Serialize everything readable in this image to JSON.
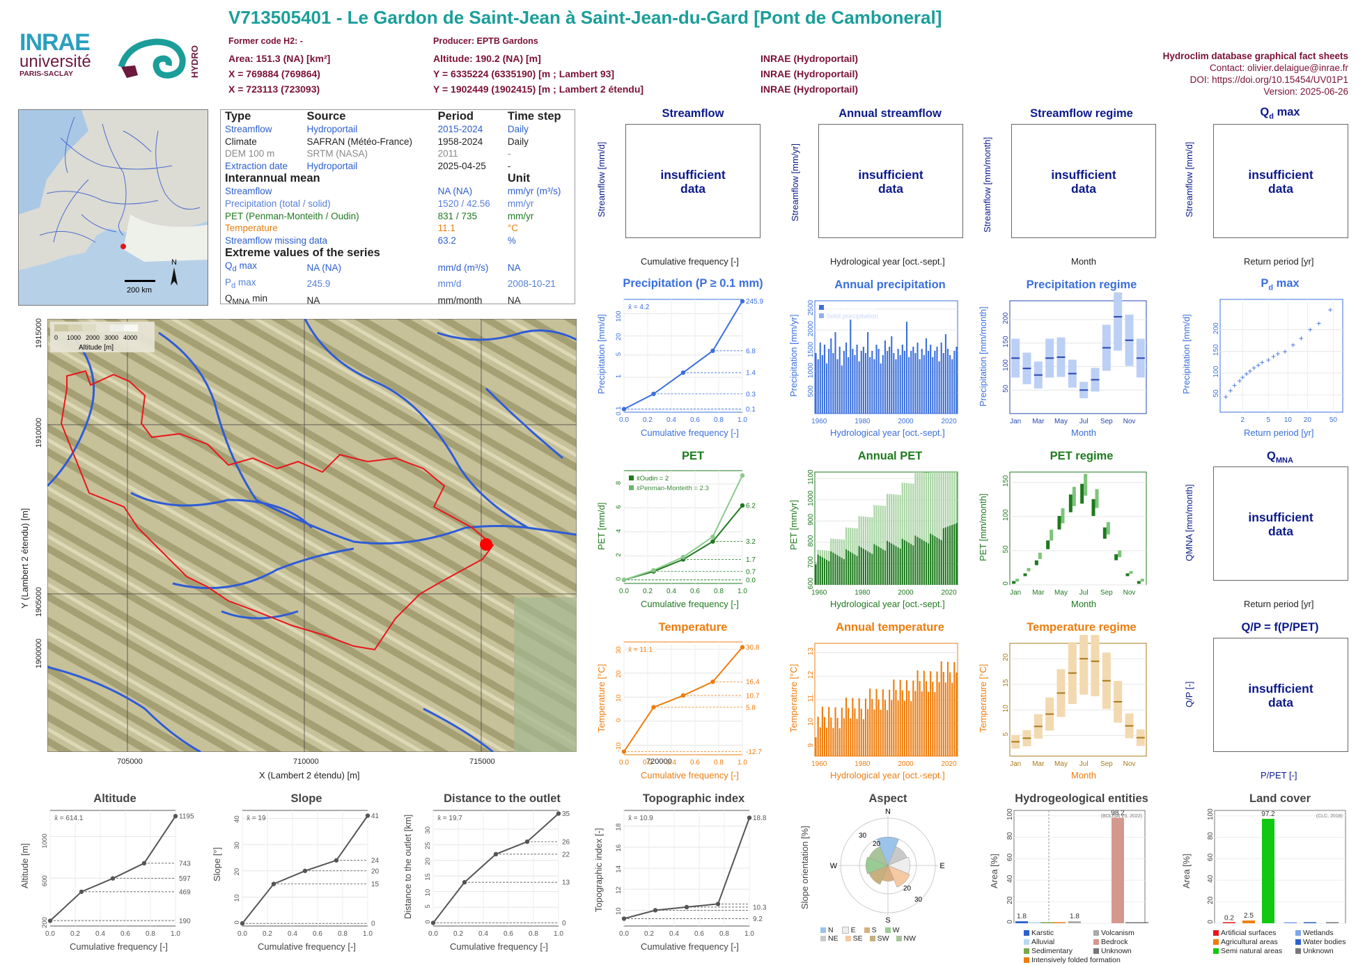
{
  "header": {
    "title": "V713505401 - Le Gardon de Saint-Jean à Saint-Jean-du-Gard [Pont de Camboneral]",
    "former_code": "Former code H2: -",
    "producer": "Producer: EPTB Gardons",
    "area": "Area: 151.3 (NA) [km²]",
    "x93": "X = 769884 (769864)",
    "x2": "X = 723113 (723093)",
    "altitude": "Altitude: 190.2 (NA) [m]",
    "y93": "Y = 6335224 (6335190) [m ; Lambert 93]",
    "y2": "Y = 1902449 (1902415) [m ; Lambert 2 étendu]",
    "src1": "INRAE (Hydroportail)",
    "src2": "INRAE (Hydroportail)",
    "src3": "INRAE (Hydroportail)",
    "db": "Hydroclim database graphical fact sheets",
    "contact": "Contact: olivier.delaigue@inrae.fr",
    "doi": "DOI: https://doi.org/10.15454/UV01P1",
    "version": "Version: 2025-06-26",
    "logo_inrae": "INRAE",
    "logo_univ": "université",
    "logo_ps": "PARIS-SACLAY",
    "logo_hydro": "HYDRO"
  },
  "locator": {
    "north": "N",
    "scale": "200 km"
  },
  "info": {
    "h_type": "Type",
    "h_source": "Source",
    "h_period": "Period",
    "h_step": "Time step",
    "rows": [
      {
        "type": "Streamflow",
        "source": "Hydroportail",
        "period": "2015-2024",
        "step": "Daily"
      },
      {
        "type": "Climate",
        "source": "SAFRAN (Météo-France)",
        "period": "1958-2024",
        "step": "Daily"
      },
      {
        "type": "DEM 100 m",
        "source": "SRTM (NASA)",
        "period": "2011",
        "step": "-"
      },
      {
        "type": "Extraction date",
        "source": "Hydroportail",
        "period": "2025-04-25",
        "step": "-"
      }
    ],
    "interannual": "Interannual mean",
    "unit": "Unit",
    "means": [
      {
        "name": "Streamflow",
        "value": "NA (NA)",
        "unit": "mm/yr (m³/s)"
      },
      {
        "name": "Precipitation (total / solid)",
        "value": "1520 / 42.56",
        "unit": "mm/yr"
      },
      {
        "name": "PET (Penman-Monteith / Oudin)",
        "value": "831 / 735",
        "unit": "mm/yr"
      },
      {
        "name": "Temperature",
        "value": "11.1",
        "unit": "°C"
      },
      {
        "name": "Streamflow missing data",
        "value": "63.2",
        "unit": "%"
      }
    ],
    "extreme": "Extreme values of the series",
    "ext": [
      {
        "name": "Qd max",
        "value": "NA (NA)",
        "unit": "mm/d (m³/s)",
        "date": "NA"
      },
      {
        "name": "Pd max",
        "value": "245.9",
        "unit": "mm/d",
        "date": "2008-10-21"
      },
      {
        "name": "QMNA min",
        "value": "NA",
        "unit": "mm/month",
        "date": "NA"
      }
    ]
  },
  "map": {
    "legend_ticks": [
      "0",
      "1000",
      "2000",
      "3000",
      "4000"
    ],
    "legend_title": "Altitude [m]",
    "x_ticks": [
      "705000",
      "710000",
      "715000",
      "720000"
    ],
    "y_ticks": [
      "1915000",
      "1910000",
      "1905000",
      "1900000"
    ],
    "xlabel": "X (Lambert 2 étendu) [m]",
    "ylabel": "Y (Lambert 2 étendu) [m]"
  },
  "panels": {
    "streamflow": {
      "title": "Streamflow",
      "ylabel": "Streamflow [mm/d]",
      "xlabel": "Cumulative frequency [-]",
      "msg1": "insufficient",
      "msg2": "data"
    },
    "annual_streamflow": {
      "title": "Annual streamflow",
      "ylabel": "Streamflow [mm/yr]",
      "xlabel": "Hydrological year [oct.-sept.]",
      "msg1": "insufficient",
      "msg2": "data"
    },
    "streamflow_regime": {
      "title": "Streamflow regime",
      "ylabel": "Streamflow [mm/month]",
      "xlabel": "Month",
      "msg1": "insufficient",
      "msg2": "data"
    },
    "qd_max": {
      "title": "Q",
      "title_sub": "d",
      "title_rest": " max",
      "ylabel": "Streamflow [mm/d]",
      "xlabel": "Return period [yr]",
      "msg1": "insufficient",
      "msg2": "data"
    },
    "precip": {
      "title": "Precipitation (P ≥ 0.1 mm)",
      "ylabel": "Precipitation [mm/d]",
      "xlabel": "Cumulative frequency [-]",
      "mean": "x̄ = 4.2"
    },
    "annual_precip": {
      "title": "Annual precipitation",
      "ylabel": "Precipitation [mm/yr]",
      "xlabel": "Hydrological year [oct.-sept.]",
      "leg1": "Total precipitation",
      "leg2": "Solid precipitation"
    },
    "precip_regime": {
      "title": "Precipitation regime",
      "ylabel": "Precipitation [mm/month]",
      "xlabel": "Month"
    },
    "pd_max": {
      "title": "P",
      "title_sub": "d",
      "title_rest": " max",
      "ylabel": "Precipitation [mm/d]",
      "xlabel": "Return period [yr]"
    },
    "pet": {
      "title": "PET",
      "ylabel": "PET [mm/d]",
      "xlabel": "Cumulative frequency [-]",
      "leg1": "x̄Oudin = 2",
      "leg2": "x̄Penman-Monteith = 2.3"
    },
    "annual_pet": {
      "title": "Annual PET",
      "ylabel": "PET [mm/yr]",
      "xlabel": "Hydrological year [oct.-sept.]"
    },
    "pet_regime": {
      "title": "PET regime",
      "ylabel": "PET [mm/month]",
      "xlabel": "Month"
    },
    "qmna": {
      "title": "Q",
      "title_sub": "MNA",
      "ylabel": "QMNA [mm/month]",
      "xlabel": "Return period [yr]",
      "msg1": "insufficient",
      "msg2": "data"
    },
    "temp": {
      "title": "Temperature",
      "ylabel": "Temperature [°C]",
      "xlabel": "Cumulative frequency [-]",
      "mean": "x̄ = 11.1"
    },
    "annual_temp": {
      "title": "Annual temperature",
      "ylabel": "Temperature [°C]",
      "xlabel": "Hydrological year [oct.-sept.]"
    },
    "temp_regime": {
      "title": "Temperature regime",
      "ylabel": "Temperature [°C]",
      "xlabel": "Month"
    },
    "qp": {
      "title": "Q/P = f(P/PET)",
      "ylabel": "Q/P [-]",
      "xlabel": "P/PET [-]",
      "msg1": "insufficient",
      "msg2": "data"
    },
    "altitude": {
      "title": "Altitude",
      "ylabel": "Altitude [m]",
      "xlabel": "Cumulative frequency [-]",
      "mean": "x̄ = 614.1"
    },
    "slope": {
      "title": "Slope",
      "ylabel": "Slope [°]",
      "xlabel": "Cumulative frequency [-]",
      "mean": "x̄ = 19"
    },
    "distance": {
      "title": "Distance to the outlet",
      "ylabel": "Distance to the outlet [km]",
      "xlabel": "Cumulative frequency [-]",
      "mean": "x̄ = 19.7"
    },
    "topo": {
      "title": "Topographic index",
      "ylabel": "Topographic index [-]",
      "xlabel": "Cumulative frequency [-]",
      "mean": "x̄ = 10.9"
    },
    "aspect": {
      "title": "Aspect",
      "ylabel": "Slope orientation [%]"
    },
    "hydrogeo": {
      "title": "Hydrogeological entities",
      "ylabel": "Area [%]",
      "source": "(BDLISA V3, 2022)"
    },
    "landcover": {
      "title": "Land cover",
      "ylabel": "Area [%]",
      "source": "(CLC, 2018)"
    }
  },
  "chart_data": [
    {
      "type": "line",
      "title": "Precipitation (P ≥ 0.1 mm)",
      "xlabel": "Cumulative frequency [-]",
      "ylabel": "Precipitation [mm/d]",
      "x": [
        0,
        0.25,
        0.5,
        0.75,
        1
      ],
      "y": [
        0.1,
        0.3,
        1.4,
        6.8,
        245.9
      ],
      "right_ticks": [
        "245.9",
        "6.8",
        "1.4",
        "0.3",
        "0.1"
      ],
      "y_ticks": [
        "0.1",
        "1",
        "5",
        "20",
        "100"
      ],
      "x_ticks": [
        "0.0",
        "0.2",
        "0.4",
        "0.6",
        "0.8",
        "1.0"
      ],
      "mean": 4.2
    },
    {
      "type": "bar",
      "title": "Annual precipitation",
      "x_ticks": [
        "1960",
        "1980",
        "2000",
        "2020"
      ],
      "y_ticks": [
        "500",
        "1000",
        "1500",
        "2000",
        "2500"
      ],
      "ylim": [
        0,
        2700
      ],
      "series": [
        {
          "name": "Total precipitation",
          "values": [
            1450,
            1300,
            1700,
            1400,
            1650,
            1200,
            1550,
            1800,
            1450,
            1950,
            1300,
            1600,
            1150,
            1500,
            1700,
            1350,
            2250,
            1550,
            1400,
            1650,
            1250,
            1500,
            1600,
            1450,
            1950,
            1350,
            1500,
            1300,
            1650,
            1550,
            1200,
            1400,
            1750,
            1500,
            1600,
            1850,
            1450,
            1300,
            1550,
            1400,
            1650,
            1500,
            2200,
            1350,
            1500,
            1600,
            1450,
            1700,
            1300,
            1550,
            1400,
            1800,
            1500,
            1650,
            1350,
            1500,
            1600,
            1250,
            1700,
            1450,
            1900,
            1550,
            1400,
            1300,
            1500,
            1600
          ]
        },
        {
          "name": "Solid precipitation",
          "values": []
        }
      ]
    },
    {
      "type": "bar",
      "title": "Precipitation regime",
      "categories": [
        "Jan",
        "Feb",
        "Mar",
        "Apr",
        "May",
        "Jun",
        "Jul",
        "Aug",
        "Sep",
        "Oct",
        "Nov",
        "Dec"
      ],
      "y_ticks": [
        "50",
        "100",
        "150",
        "200"
      ],
      "median": [
        118,
        96,
        82,
        118,
        120,
        85,
        50,
        72,
        140,
        206,
        156,
        118
      ]
    },
    {
      "type": "scatter",
      "title": "Pd max",
      "x_ticks": [
        "2",
        "5",
        "10",
        "20",
        "50"
      ],
      "y_ticks": [
        "50",
        "100",
        "150",
        "200"
      ],
      "x": [
        1.1,
        1.3,
        1.5,
        1.8,
        2.0,
        2.3,
        2.6,
        3.0,
        3.5,
        4.0,
        5.0,
        6.0,
        7.0,
        9.0,
        12,
        16,
        22,
        30,
        45
      ],
      "y": [
        45,
        60,
        72,
        82,
        90,
        98,
        105,
        112,
        118,
        125,
        130,
        138,
        145,
        150,
        165,
        180,
        200,
        215,
        245.9
      ]
    },
    {
      "type": "line",
      "title": "PET",
      "x": [
        0,
        0.25,
        0.5,
        0.75,
        1
      ],
      "series": [
        {
          "name": "Oudin",
          "y": [
            0,
            0.7,
            1.7,
            3.2,
            6.2
          ]
        },
        {
          "name": "Penman-Monteith",
          "y": [
            0,
            0.8,
            1.9,
            3.6,
            8.7
          ]
        }
      ],
      "right_ticks": [
        "6.2",
        "3.2",
        "1.7",
        "0.7",
        "0.0"
      ],
      "y_ticks": [
        "0",
        "2",
        "4",
        "6",
        "8"
      ],
      "x_ticks": [
        "0.0",
        "0.2",
        "0.4",
        "0.6",
        "0.8",
        "1.0"
      ]
    },
    {
      "type": "bar",
      "title": "Annual PET",
      "x_ticks": [
        "1960",
        "1980",
        "2000",
        "2020"
      ],
      "y_ticks": [
        "600",
        "700",
        "800",
        "900",
        "1000",
        "1100"
      ],
      "ylim": [
        600,
        1130
      ]
    },
    {
      "type": "bar",
      "title": "PET regime",
      "categories": [
        "Jan",
        "Feb",
        "Mar",
        "Apr",
        "May",
        "Jun",
        "Jul",
        "Aug",
        "Sep",
        "Oct",
        "Nov",
        "Dec"
      ],
      "y_ticks": [
        "0",
        "50",
        "100",
        "150"
      ],
      "oudin": [
        5,
        15,
        32,
        58,
        90,
        118,
        132,
        112,
        75,
        40,
        15,
        5
      ],
      "pm": [
        8,
        22,
        42,
        72,
        100,
        128,
        145,
        125,
        82,
        45,
        18,
        8
      ]
    },
    {
      "type": "line",
      "title": "Temperature",
      "x": [
        0,
        0.25,
        0.5,
        0.75,
        1
      ],
      "y": [
        -12.7,
        5.8,
        10.7,
        16.4,
        30.8
      ],
      "right_ticks": [
        "30.8",
        "16.4",
        "10.7",
        "5.8",
        "-12.7"
      ],
      "y_ticks": [
        "-10",
        "0",
        "10",
        "20",
        "30"
      ],
      "x_ticks": [
        "0.0",
        "0.2",
        "0.4",
        "0.6",
        "0.8",
        "1.0"
      ],
      "mean": 11.1
    },
    {
      "type": "bar",
      "title": "Annual temperature",
      "x_ticks": [
        "1960",
        "1980",
        "2000",
        "2020"
      ],
      "y_ticks": [
        "9",
        "10",
        "11",
        "12",
        "13"
      ],
      "ylim": [
        8.6,
        13.4
      ]
    },
    {
      "type": "bar",
      "title": "Temperature regime",
      "categories": [
        "Jan",
        "Feb",
        "Mar",
        "Apr",
        "May",
        "Jun",
        "Jul",
        "Aug",
        "Sep",
        "Oct",
        "Nov",
        "Dec"
      ],
      "y_ticks": [
        "5",
        "10",
        "15",
        "20"
      ],
      "median": [
        3.8,
        4.5,
        6.8,
        9.2,
        13.3,
        17.2,
        20.0,
        19.5,
        15.7,
        11.6,
        6.9,
        4.6
      ]
    },
    {
      "type": "line",
      "title": "Altitude",
      "x": [
        0,
        0.25,
        0.5,
        0.75,
        1
      ],
      "y": [
        190,
        469,
        597,
        743,
        1195
      ],
      "right_ticks": [
        "1195",
        "743",
        "597",
        "469",
        "190"
      ],
      "y_ticks": [
        "200",
        "600",
        "1000"
      ],
      "x_ticks": [
        "0.0",
        "0.2",
        "0.4",
        "0.6",
        "0.8",
        "1.0"
      ]
    },
    {
      "type": "line",
      "title": "Slope",
      "x": [
        0,
        0.25,
        0.5,
        0.75,
        1
      ],
      "y": [
        0,
        15,
        20,
        24,
        41
      ],
      "right_ticks": [
        "41",
        "24",
        "20",
        "15",
        "0"
      ],
      "y_ticks": [
        "0",
        "10",
        "20",
        "30",
        "40"
      ],
      "x_ticks": [
        "0.0",
        "0.2",
        "0.4",
        "0.6",
        "0.8",
        "1.0"
      ]
    },
    {
      "type": "line",
      "title": "Distance to the outlet",
      "x": [
        0,
        0.25,
        0.5,
        0.75,
        1
      ],
      "y": [
        0,
        13,
        22,
        26,
        35
      ],
      "right_ticks": [
        "35",
        "26",
        "22",
        "13",
        "0"
      ],
      "y_ticks": [
        "0",
        "5",
        "10",
        "15",
        "20",
        "25",
        "30"
      ],
      "x_ticks": [
        "0.0",
        "0.2",
        "0.4",
        "0.6",
        "0.8",
        "1.0"
      ]
    },
    {
      "type": "line",
      "title": "Topographic index",
      "x": [
        0,
        0.25,
        0.5,
        0.75,
        1
      ],
      "y": [
        9.2,
        10.0,
        10.3,
        10.6,
        18.8
      ],
      "right_ticks": [
        "18.8",
        "10.3",
        "9.2"
      ],
      "y_ticks": [
        "10",
        "12",
        "14",
        "16",
        "18"
      ],
      "x_ticks": [
        "0.0",
        "0.2",
        "0.4",
        "0.6",
        "0.8",
        "1.0"
      ]
    },
    {
      "type": "pie",
      "title": "Aspect",
      "categories": [
        "N",
        "NE",
        "E",
        "SE",
        "S",
        "SW",
        "W",
        "NW"
      ],
      "values": [
        18,
        13,
        14,
        15,
        10,
        13,
        14,
        13
      ],
      "ring_ticks": [
        "20",
        "30"
      ]
    },
    {
      "type": "bar",
      "title": "Hydrogeological entities",
      "categories": [
        "Karstic",
        "Alluvial",
        "Sedimentary",
        "Intensively folded formation",
        "Volcanism",
        "Bedrock",
        "Unknown",
        "Unknown"
      ],
      "values": [
        1.8,
        0,
        0,
        0,
        1.8,
        98.2,
        0,
        0
      ],
      "y_ticks": [
        "0",
        "20",
        "40",
        "60",
        "80",
        "100"
      ],
      "labels": [
        "1.8",
        "1.8",
        "98.2"
      ]
    },
    {
      "type": "bar",
      "title": "Land cover",
      "categories": [
        "Artificial surfaces",
        "Agricultural areas",
        "Semi natural areas",
        "Wetlands",
        "Water bodies",
        "Unknown"
      ],
      "values": [
        0.2,
        2.5,
        97.2,
        0,
        0,
        0
      ],
      "y_ticks": [
        "0",
        "20",
        "40",
        "60",
        "80",
        "100"
      ],
      "labels": [
        "0.2",
        "2.5",
        "97.2"
      ]
    }
  ],
  "legends": {
    "aspect": [
      "N",
      "E",
      "S",
      "W",
      "NE",
      "SE",
      "SW",
      "NW"
    ],
    "hydrogeo": [
      "Karstic",
      "Volcanism",
      "Alluvial",
      "Bedrock",
      "Sedimentary",
      "Unknown",
      "Intensively folded formation"
    ],
    "landcover": [
      "Artificial surfaces",
      "Wetlands",
      "Agricultural areas",
      "Water bodies",
      "Semi natural areas",
      "Unknown"
    ]
  },
  "colors": {
    "teal": "#1b9e9a",
    "wine": "#7a1035",
    "blue": "#3a6fdd",
    "green": "#1e7a1e",
    "orange": "#ef7c0c",
    "navy": "#0b1a8a"
  }
}
